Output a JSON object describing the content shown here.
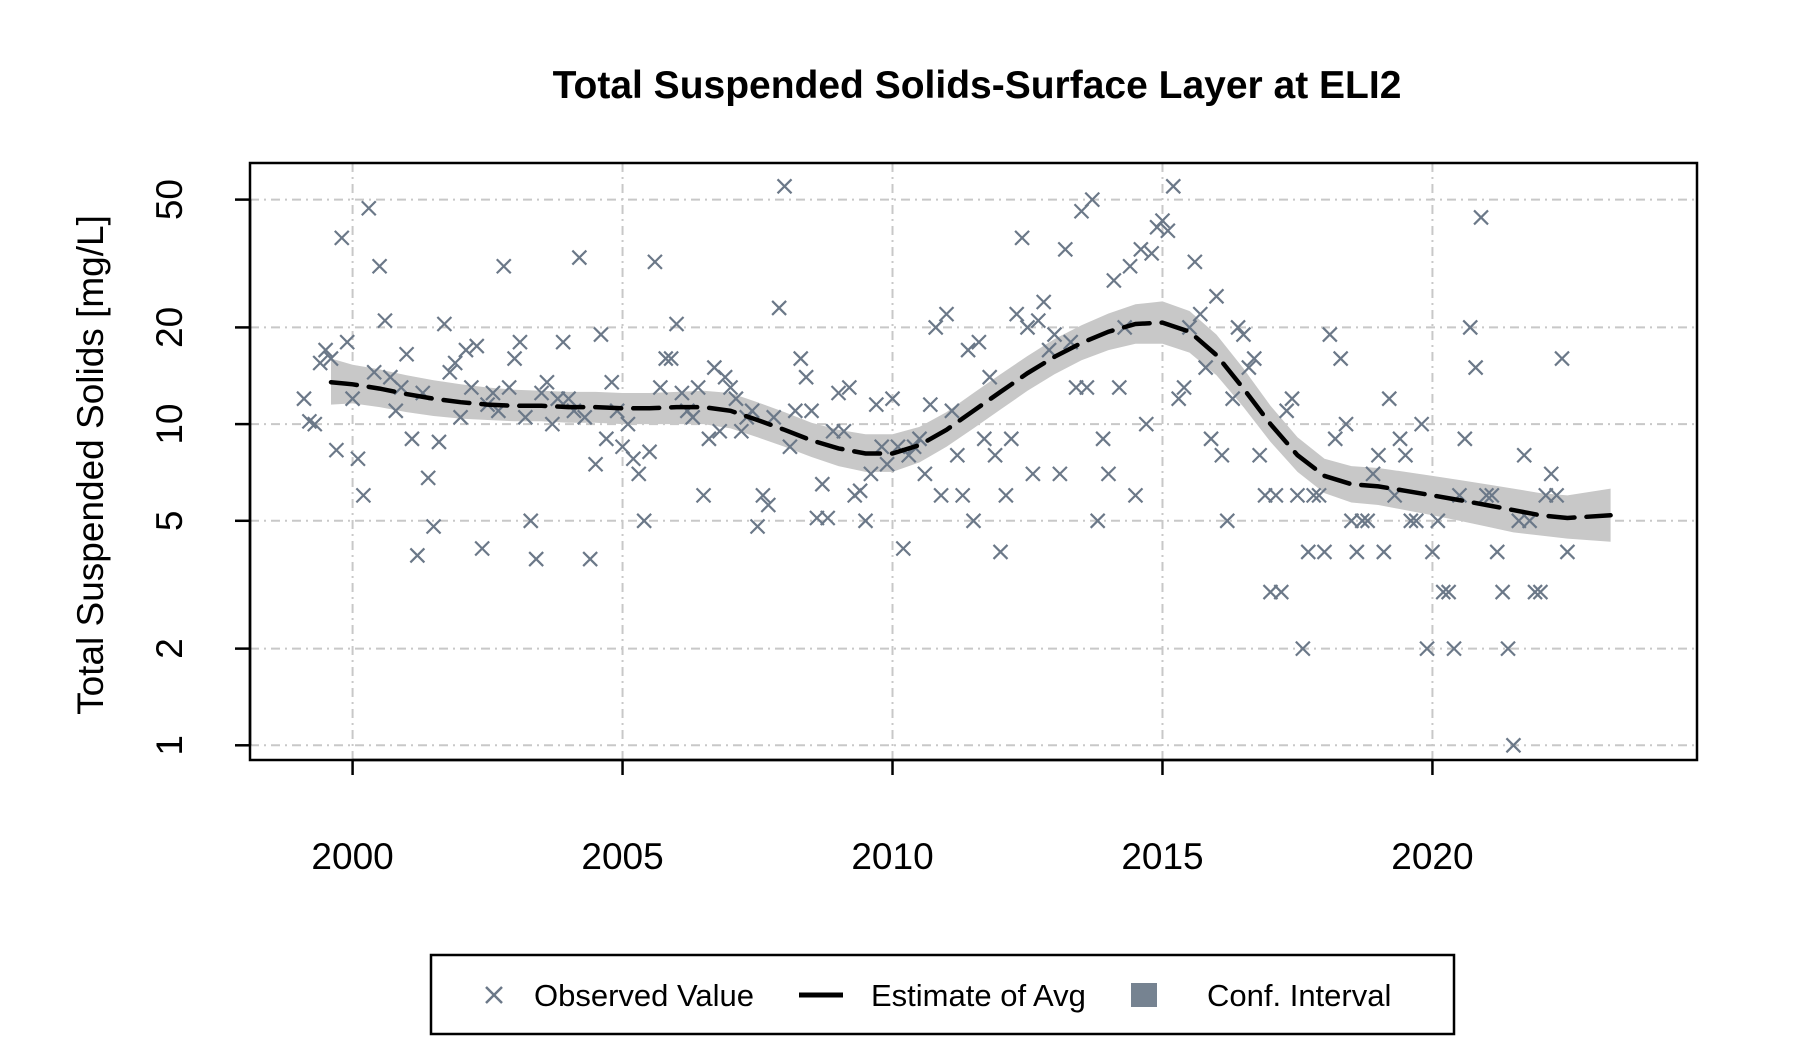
{
  "chart_data": {
    "type": "scatter",
    "title": "Total Suspended Solids-Surface Layer at ELI2",
    "xlabel": "",
    "ylabel": "Total Suspended Solids [mg/L]",
    "x_ticks": [
      2000,
      2005,
      2010,
      2015,
      2020
    ],
    "y_ticks": [
      1,
      2,
      5,
      10,
      20,
      50
    ],
    "y_scale": "log",
    "xlim": [
      1998.1,
      2024.9
    ],
    "ylim": [
      0.9,
      65
    ],
    "grid": true,
    "legend": {
      "position": "bottom",
      "entries": [
        "Observed Value",
        "Estimate of Avg",
        "Conf. Interval"
      ]
    },
    "colors": {
      "observed": "#6b7888",
      "estimate": "#000000",
      "conf_interval": "#c8c8c8",
      "legend_ci": "#768391",
      "grid": "#c8c8c8"
    },
    "series": [
      {
        "name": "Observed Value",
        "marker": "x",
        "points": [
          [
            1999.1,
            12
          ],
          [
            1999.2,
            10.2
          ],
          [
            1999.3,
            10
          ],
          [
            1999.4,
            15.5
          ],
          [
            1999.5,
            17
          ],
          [
            1999.6,
            16
          ],
          [
            1999.7,
            8.3
          ],
          [
            1999.8,
            38
          ],
          [
            1999.9,
            18
          ],
          [
            2000.0,
            12
          ],
          [
            2000.1,
            7.8
          ],
          [
            2000.2,
            6
          ],
          [
            2000.3,
            47
          ],
          [
            2000.4,
            14.5
          ],
          [
            2000.5,
            31
          ],
          [
            2000.6,
            21
          ],
          [
            2000.7,
            14
          ],
          [
            2000.8,
            11
          ],
          [
            2000.9,
            13
          ],
          [
            2001.0,
            16.5
          ],
          [
            2001.1,
            9
          ],
          [
            2001.2,
            3.9
          ],
          [
            2001.3,
            12.5
          ],
          [
            2001.4,
            6.8
          ],
          [
            2001.5,
            4.8
          ],
          [
            2001.6,
            8.8
          ],
          [
            2001.7,
            20.5
          ],
          [
            2001.8,
            14.5
          ],
          [
            2001.9,
            15.5
          ],
          [
            2002.0,
            10.5
          ],
          [
            2002.1,
            17
          ],
          [
            2002.2,
            13
          ],
          [
            2002.3,
            17.5
          ],
          [
            2002.4,
            4.1
          ],
          [
            2002.5,
            11.5
          ],
          [
            2002.6,
            12.5
          ],
          [
            2002.7,
            11
          ],
          [
            2002.8,
            31
          ],
          [
            2002.9,
            13
          ],
          [
            2003.0,
            16
          ],
          [
            2003.1,
            18
          ],
          [
            2003.2,
            10.5
          ],
          [
            2003.3,
            5
          ],
          [
            2003.4,
            3.8
          ],
          [
            2003.5,
            12.5
          ],
          [
            2003.6,
            13.5
          ],
          [
            2003.7,
            10
          ],
          [
            2003.8,
            12
          ],
          [
            2003.9,
            18
          ],
          [
            2004.0,
            12
          ],
          [
            2004.1,
            11
          ],
          [
            2004.2,
            33
          ],
          [
            2004.3,
            10.5
          ],
          [
            2004.4,
            3.8
          ],
          [
            2004.5,
            7.5
          ],
          [
            2004.6,
            19
          ],
          [
            2004.7,
            9
          ],
          [
            2004.8,
            13.5
          ],
          [
            2004.9,
            11
          ],
          [
            2005.0,
            8.5
          ],
          [
            2005.1,
            10
          ],
          [
            2005.2,
            7.8
          ],
          [
            2005.3,
            7
          ],
          [
            2005.4,
            5
          ],
          [
            2005.5,
            8.2
          ],
          [
            2005.6,
            32
          ],
          [
            2005.7,
            13
          ],
          [
            2005.8,
            16
          ],
          [
            2005.9,
            16
          ],
          [
            2006.0,
            20.5
          ],
          [
            2006.1,
            12.5
          ],
          [
            2006.2,
            11
          ],
          [
            2006.3,
            10.5
          ],
          [
            2006.4,
            13
          ],
          [
            2006.5,
            6
          ],
          [
            2006.6,
            9
          ],
          [
            2006.7,
            15
          ],
          [
            2006.8,
            9.5
          ],
          [
            2006.9,
            14
          ],
          [
            2007.0,
            13
          ],
          [
            2007.1,
            12
          ],
          [
            2007.2,
            9.5
          ],
          [
            2007.3,
            10.5
          ],
          [
            2007.4,
            11
          ],
          [
            2007.5,
            4.8
          ],
          [
            2007.6,
            6
          ],
          [
            2007.7,
            5.6
          ],
          [
            2007.8,
            10.5
          ],
          [
            2007.9,
            23
          ],
          [
            2008.0,
            55
          ],
          [
            2008.1,
            8.5
          ],
          [
            2008.2,
            11
          ],
          [
            2008.3,
            16
          ],
          [
            2008.4,
            14
          ],
          [
            2008.5,
            11
          ],
          [
            2008.6,
            5.1
          ],
          [
            2008.7,
            6.5
          ],
          [
            2008.8,
            5.1
          ],
          [
            2008.9,
            9.5
          ],
          [
            2009.0,
            12.5
          ],
          [
            2009.1,
            9.5
          ],
          [
            2009.2,
            13
          ],
          [
            2009.3,
            6
          ],
          [
            2009.4,
            6.2
          ],
          [
            2009.5,
            5
          ],
          [
            2009.6,
            7
          ],
          [
            2009.7,
            11.5
          ],
          [
            2009.8,
            8.5
          ],
          [
            2009.9,
            7.5
          ],
          [
            2010.0,
            12
          ],
          [
            2010.1,
            8.5
          ],
          [
            2010.2,
            4.1
          ],
          [
            2010.3,
            8
          ],
          [
            2010.4,
            8.5
          ],
          [
            2010.5,
            9
          ],
          [
            2010.6,
            7
          ],
          [
            2010.7,
            11.5
          ],
          [
            2010.8,
            20
          ],
          [
            2010.9,
            6
          ],
          [
            2011.0,
            22
          ],
          [
            2011.1,
            11
          ],
          [
            2011.2,
            8
          ],
          [
            2011.3,
            6
          ],
          [
            2011.4,
            17
          ],
          [
            2011.5,
            5
          ],
          [
            2011.6,
            18
          ],
          [
            2011.7,
            9
          ],
          [
            2011.8,
            14
          ],
          [
            2011.9,
            8
          ],
          [
            2012.0,
            4
          ],
          [
            2012.1,
            6
          ],
          [
            2012.2,
            9
          ],
          [
            2012.3,
            22
          ],
          [
            2012.4,
            38
          ],
          [
            2012.5,
            20
          ],
          [
            2012.6,
            7
          ],
          [
            2012.7,
            21
          ],
          [
            2012.8,
            24
          ],
          [
            2012.9,
            17
          ],
          [
            2013.0,
            19
          ],
          [
            2013.1,
            7
          ],
          [
            2013.2,
            35
          ],
          [
            2013.3,
            18
          ],
          [
            2013.4,
            13
          ],
          [
            2013.5,
            46
          ],
          [
            2013.6,
            13
          ],
          [
            2013.7,
            50
          ],
          [
            2013.8,
            5
          ],
          [
            2013.9,
            9
          ],
          [
            2014.0,
            7
          ],
          [
            2014.1,
            28
          ],
          [
            2014.2,
            13
          ],
          [
            2014.3,
            20
          ],
          [
            2014.4,
            31
          ],
          [
            2014.5,
            6
          ],
          [
            2014.6,
            35
          ],
          [
            2014.7,
            10
          ],
          [
            2014.8,
            34
          ],
          [
            2014.9,
            41
          ],
          [
            2015.0,
            43
          ],
          [
            2015.1,
            40
          ],
          [
            2015.2,
            55
          ],
          [
            2015.3,
            12
          ],
          [
            2015.4,
            13
          ],
          [
            2015.5,
            20
          ],
          [
            2015.6,
            32
          ],
          [
            2015.7,
            22
          ],
          [
            2015.8,
            15
          ],
          [
            2015.9,
            9
          ],
          [
            2016.0,
            25
          ],
          [
            2016.1,
            8
          ],
          [
            2016.2,
            5
          ],
          [
            2016.3,
            12
          ],
          [
            2016.4,
            20
          ],
          [
            2016.5,
            19
          ],
          [
            2016.6,
            15
          ],
          [
            2016.7,
            16
          ],
          [
            2016.8,
            8
          ],
          [
            2016.9,
            6
          ],
          [
            2017.0,
            3
          ],
          [
            2017.1,
            6
          ],
          [
            2017.2,
            3
          ],
          [
            2017.3,
            11
          ],
          [
            2017.4,
            12
          ],
          [
            2017.5,
            6
          ],
          [
            2017.6,
            2
          ],
          [
            2017.7,
            4
          ],
          [
            2017.8,
            6
          ],
          [
            2017.9,
            6
          ],
          [
            2018.0,
            4
          ],
          [
            2018.1,
            19
          ],
          [
            2018.2,
            9
          ],
          [
            2018.3,
            16
          ],
          [
            2018.4,
            10
          ],
          [
            2018.5,
            5
          ],
          [
            2018.6,
            4
          ],
          [
            2018.7,
            5
          ],
          [
            2018.8,
            5
          ],
          [
            2018.9,
            7
          ],
          [
            2019.0,
            8
          ],
          [
            2019.1,
            4
          ],
          [
            2019.2,
            12
          ],
          [
            2019.3,
            6
          ],
          [
            2019.4,
            9
          ],
          [
            2019.5,
            8
          ],
          [
            2019.6,
            5
          ],
          [
            2019.7,
            5
          ],
          [
            2019.8,
            10
          ],
          [
            2019.9,
            2
          ],
          [
            2020.0,
            4
          ],
          [
            2020.1,
            5
          ],
          [
            2020.2,
            3
          ],
          [
            2020.3,
            3
          ],
          [
            2020.4,
            2
          ],
          [
            2020.5,
            6
          ],
          [
            2020.6,
            9
          ],
          [
            2020.7,
            20
          ],
          [
            2020.8,
            15
          ],
          [
            2020.9,
            44
          ],
          [
            2021.0,
            6
          ],
          [
            2021.1,
            6
          ],
          [
            2021.2,
            4
          ],
          [
            2021.3,
            3
          ],
          [
            2021.4,
            2
          ],
          [
            2021.5,
            1
          ],
          [
            2021.6,
            5
          ],
          [
            2021.7,
            8
          ],
          [
            2021.8,
            5
          ],
          [
            2021.9,
            3
          ],
          [
            2022.0,
            3
          ],
          [
            2022.1,
            6
          ],
          [
            2022.2,
            7
          ],
          [
            2022.3,
            6
          ],
          [
            2022.4,
            16
          ],
          [
            2022.5,
            4
          ]
        ]
      },
      {
        "name": "Estimate of Avg",
        "style": "dashed",
        "points": [
          [
            1999.6,
            13.5
          ],
          [
            2000.0,
            13.3
          ],
          [
            2000.5,
            12.9
          ],
          [
            2001.0,
            12.4
          ],
          [
            2001.5,
            12.0
          ],
          [
            2002.0,
            11.7
          ],
          [
            2002.5,
            11.5
          ],
          [
            2003.0,
            11.4
          ],
          [
            2003.5,
            11.4
          ],
          [
            2004.0,
            11.3
          ],
          [
            2004.5,
            11.3
          ],
          [
            2005.0,
            11.2
          ],
          [
            2005.5,
            11.2
          ],
          [
            2006.0,
            11.3
          ],
          [
            2006.5,
            11.3
          ],
          [
            2007.0,
            11.0
          ],
          [
            2007.5,
            10.3
          ],
          [
            2008.0,
            9.6
          ],
          [
            2008.5,
            8.9
          ],
          [
            2009.0,
            8.4
          ],
          [
            2009.5,
            8.1
          ],
          [
            2010.0,
            8.1
          ],
          [
            2010.5,
            8.6
          ],
          [
            2011.0,
            9.6
          ],
          [
            2011.5,
            11.0
          ],
          [
            2012.0,
            12.6
          ],
          [
            2012.5,
            14.4
          ],
          [
            2013.0,
            16.2
          ],
          [
            2013.5,
            17.9
          ],
          [
            2014.0,
            19.4
          ],
          [
            2014.5,
            20.5
          ],
          [
            2015.0,
            20.7
          ],
          [
            2015.5,
            19.4
          ],
          [
            2016.0,
            16.4
          ],
          [
            2016.5,
            12.9
          ],
          [
            2017.0,
            10.0
          ],
          [
            2017.5,
            8.0
          ],
          [
            2018.0,
            6.9
          ],
          [
            2018.5,
            6.5
          ],
          [
            2019.0,
            6.4
          ],
          [
            2019.5,
            6.2
          ],
          [
            2020.0,
            6.0
          ],
          [
            2020.5,
            5.8
          ],
          [
            2021.0,
            5.6
          ],
          [
            2021.5,
            5.4
          ],
          [
            2022.0,
            5.2
          ],
          [
            2022.5,
            5.1
          ],
          [
            2023.3,
            5.2
          ]
        ]
      },
      {
        "name": "Conf. Interval",
        "lower": [
          11.5,
          11.6,
          11.3,
          10.9,
          10.6,
          10.4,
          10.3,
          10.2,
          10.2,
          10.1,
          10.1,
          10.0,
          10.0,
          10.0,
          10.0,
          9.7,
          9.1,
          8.5,
          7.9,
          7.4,
          7.1,
          7.1,
          7.6,
          8.5,
          9.7,
          11.1,
          12.7,
          14.3,
          15.8,
          17.0,
          17.8,
          17.8,
          16.7,
          14.2,
          11.3,
          8.8,
          7.1,
          6.1,
          5.7,
          5.6,
          5.4,
          5.2,
          5.0,
          4.8,
          4.6,
          4.5,
          4.4,
          4.3
        ],
        "upper": [
          16.0,
          15.3,
          14.8,
          14.2,
          13.7,
          13.3,
          13.0,
          12.8,
          12.7,
          12.6,
          12.6,
          12.5,
          12.5,
          12.6,
          12.7,
          12.5,
          11.7,
          10.9,
          10.1,
          9.6,
          9.3,
          9.3,
          9.8,
          10.9,
          12.5,
          14.3,
          16.3,
          18.4,
          20.3,
          22.1,
          23.6,
          24.1,
          22.5,
          19.0,
          14.9,
          11.4,
          9.1,
          7.8,
          7.4,
          7.3,
          7.1,
          6.9,
          6.7,
          6.5,
          6.3,
          6.1,
          6.0,
          6.3
        ]
      }
    ]
  }
}
